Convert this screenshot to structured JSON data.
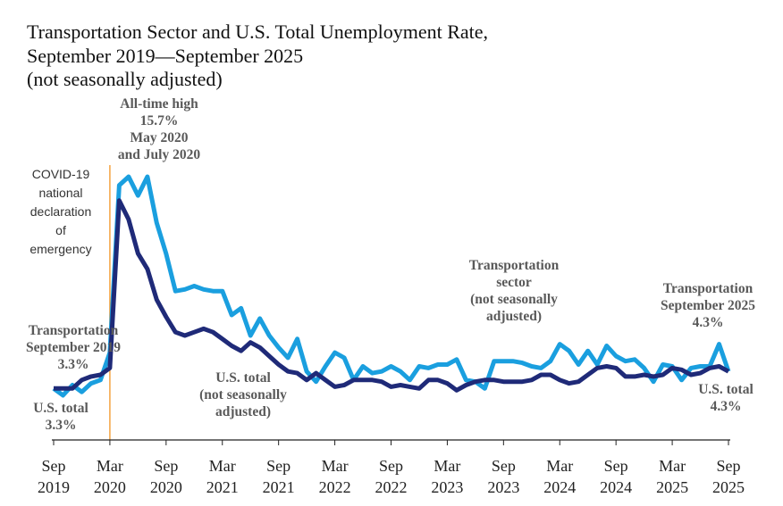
{
  "chart_data": {
    "type": "line",
    "title": "Transportation Sector and U.S. Total Unemployment Rate, September 2019—September 2025",
    "subtitle": "(not seasonally adjusted)",
    "categories": [
      "Sep 2019",
      null,
      null,
      null,
      null,
      null,
      "Mar 2020",
      null,
      null,
      null,
      null,
      null,
      "Sep 2020",
      null,
      null,
      null,
      null,
      null,
      "Mar 2021",
      null,
      null,
      null,
      null,
      null,
      "Sep 2021",
      null,
      null,
      null,
      null,
      null,
      "Mar 2022",
      null,
      null,
      null,
      null,
      null,
      "Sep 2022",
      null,
      null,
      null,
      null,
      null,
      "Mar 2023",
      null,
      null,
      null,
      null,
      null,
      "Sep 2023",
      null,
      null,
      null,
      null,
      null,
      "Mar 2024",
      null,
      null,
      null,
      null,
      null,
      "Sep 2024",
      null,
      null,
      null,
      null,
      null,
      "Mar 2025",
      null,
      null,
      null,
      null,
      null,
      "Sep 2025"
    ],
    "series": [
      {
        "color": "#1a9fdf",
        "values": [
          3.3,
          2.9,
          3.5,
          3.1,
          3.6,
          3.8,
          5.4,
          15.2,
          15.7,
          14.6,
          15.7,
          13.0,
          11.2,
          9.0,
          9.1,
          9.3,
          9.1,
          9.0,
          9.0,
          7.6,
          8.0,
          6.4,
          7.4,
          6.4,
          5.7,
          5.1,
          6.2,
          4.3,
          3.7,
          4.6,
          5.4,
          5.1,
          3.8,
          4.6,
          4.2,
          4.3,
          4.6,
          4.3,
          3.8,
          4.6,
          4.5,
          4.7,
          4.7,
          5.0,
          3.8,
          3.7,
          3.3,
          4.9,
          4.9,
          4.9,
          4.8,
          4.6,
          4.5,
          4.9,
          5.9,
          5.5,
          4.7,
          5.5,
          4.7,
          5.8,
          5.2,
          4.9,
          5.0,
          4.5,
          3.7,
          4.7,
          4.6,
          3.8,
          4.5,
          4.6,
          4.6,
          5.9,
          4.3
        ]
      },
      {
        "color": "#1f2a78",
        "values": [
          3.3,
          3.3,
          3.3,
          3.8,
          4.0,
          4.1,
          4.5,
          14.3,
          13.2,
          11.2,
          10.3,
          8.5,
          7.5,
          6.6,
          6.4,
          6.6,
          6.8,
          6.6,
          6.2,
          5.8,
          5.5,
          6.0,
          5.7,
          5.2,
          4.7,
          4.3,
          4.2,
          3.8,
          4.2,
          3.8,
          3.4,
          3.5,
          3.8,
          3.8,
          3.8,
          3.7,
          3.4,
          3.5,
          3.4,
          3.3,
          3.8,
          3.8,
          3.6,
          3.2,
          3.5,
          3.7,
          3.8,
          3.8,
          3.7,
          3.7,
          3.7,
          3.8,
          4.1,
          4.1,
          3.8,
          3.6,
          3.7,
          4.1,
          4.5,
          4.6,
          4.5,
          4.0,
          4.0,
          4.1,
          4.0,
          4.1,
          4.5,
          4.4,
          4.1,
          4.2,
          4.5,
          4.6,
          4.3
        ]
      }
    ],
    "annotations": [
      {
        "lines": [
          "All-time high",
          "15.7%",
          "May 2020",
          "and July 2020"
        ]
      },
      {
        "lines": [
          "COVID-19",
          "national",
          "declaration",
          "of",
          "emergency"
        ]
      },
      {
        "lines": [
          "Transportation",
          "September 2019",
          "3.3%"
        ]
      },
      {
        "lines": [
          "U.S. total",
          "3.3%"
        ]
      },
      {
        "lines": [
          "U.S. total",
          "(not seasonally",
          "adjusted)"
        ]
      },
      {
        "lines": [
          "Transportation",
          "sector",
          "(not seasonally",
          "adjusted)"
        ]
      },
      {
        "lines": [
          "Transportation",
          "September 2025",
          "4.3%"
        ]
      },
      {
        "lines": [
          "U.S. total",
          "4.3%"
        ]
      }
    ]
  }
}
